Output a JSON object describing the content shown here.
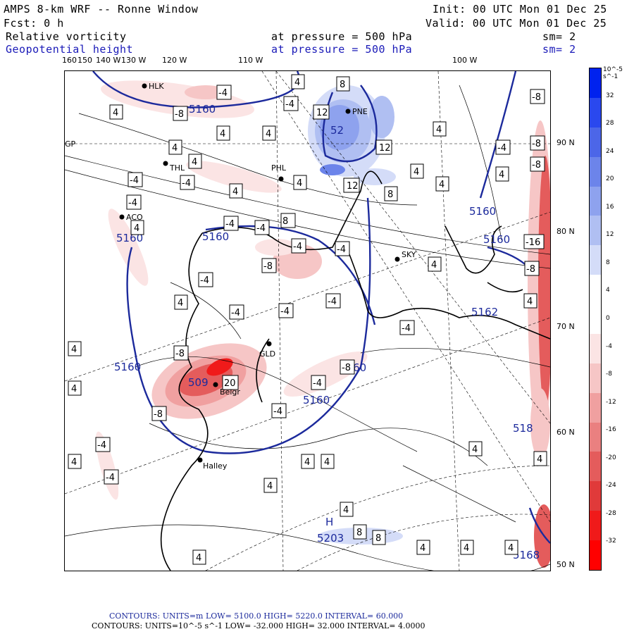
{
  "header": {
    "model": "AMPS 8-km WRF -- Ronne Window",
    "forecast": "Fcst:    0 h",
    "init": "Init: 00 UTC Mon 01 Dec 25",
    "valid": "Valid: 00 UTC Mon 01 Dec 25",
    "field1": {
      "name": "Relative vorticity",
      "level": "at pressure =  500 hPa",
      "smooth": "sm= 2"
    },
    "field2": {
      "name": "Geopotential height",
      "level": "at pressure =  500 hPa",
      "smooth": "sm= 2"
    }
  },
  "longitude_labels": [
    "160",
    "150",
    "140 W",
    "130 W",
    "120 W",
    "110 W",
    "100 W"
  ],
  "latitude_labels": [
    "90 N",
    "80 N",
    "70 N",
    "60 N",
    "50 N"
  ],
  "edge_label_left": "GP",
  "stations": [
    "HLK",
    "PNE",
    "THL",
    "PHL",
    "ACO",
    "SKY",
    "GLD",
    "Belgr",
    "Halley"
  ],
  "height_labels": [
    "5160",
    "5160",
    "5160",
    "5160",
    "5160",
    "5160",
    "5160",
    "5162",
    "5160",
    "509",
    "5203",
    "518",
    "5168",
    "52"
  ],
  "vorticity_box_labels": [
    "4",
    "-4",
    "8",
    "-8",
    "12",
    "-16",
    "20"
  ],
  "extrema": [
    "H"
  ],
  "colorbar": {
    "units": "10^-5 s^-1",
    "levels": [
      "32",
      "28",
      "24",
      "20",
      "16",
      "12",
      "8",
      "4",
      "0",
      "-4",
      "-8",
      "-12",
      "-16",
      "-20",
      "-24",
      "-28",
      "-32"
    ],
    "colors": [
      "#0022ee",
      "#2a48ee",
      "#4c66e8",
      "#6c84ea",
      "#8ea2ee",
      "#b0bff2",
      "#d4dcf8",
      "#ffffff",
      "#ffffff",
      "#fbe4e4",
      "#f6c6c6",
      "#f0a0a0",
      "#ea8080",
      "#e45c5c",
      "#e03a3a",
      "#f01a1a",
      "#ff0000"
    ]
  },
  "footer": {
    "line1": "CONTOURS:  UNITS=m  LOW=  5100.0      HIGH=  5220.0      INTERVAL=   60.000",
    "line2": "CONTOURS:  UNITS=10^-5 s^-1  LOW= -32.000     HIGH=  32.000     INTERVAL=   4.0000"
  }
}
